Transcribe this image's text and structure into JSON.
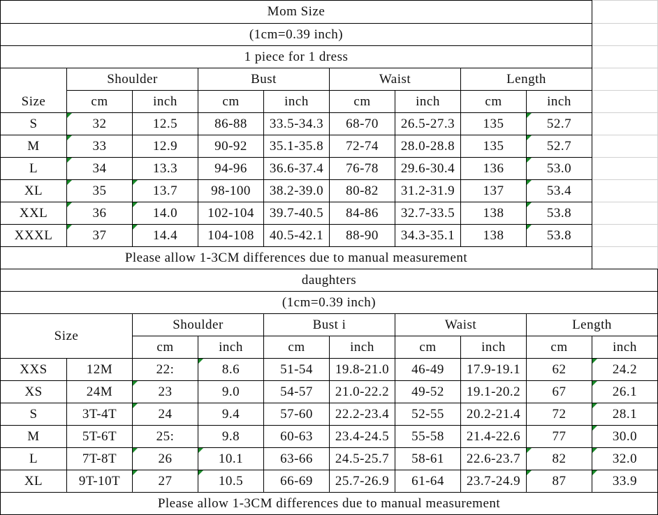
{
  "mom_table": {
    "title": "Mom Size",
    "conversion": "(1cm=0.39 inch)",
    "note": "1 piece for 1 dress",
    "size_header": "Size",
    "groups": [
      "Shoulder",
      "Bust",
      "Waist",
      "Length"
    ],
    "units": [
      "cm",
      "inch",
      "cm",
      "inch",
      "cm",
      "inch",
      "cm",
      "inch"
    ],
    "rows": [
      [
        "S",
        "32",
        "12.5",
        "86-88",
        "33.5-34.3",
        "68-70",
        "26.5-27.3",
        "135",
        "52.7"
      ],
      [
        "M",
        "33",
        "12.9",
        "90-92",
        "35.1-35.8",
        "72-74",
        "28.0-28.8",
        "135",
        "52.7"
      ],
      [
        "L",
        "34",
        "13.3",
        "94-96",
        "36.6-37.4",
        "76-78",
        "29.6-30.4",
        "136",
        "53.0"
      ],
      [
        "XL",
        "35",
        "13.7",
        "98-100",
        "38.2-39.0",
        "80-82",
        "31.2-31.9",
        "137",
        "53.4"
      ],
      [
        "XXL",
        "36",
        "14.0",
        "102-104",
        "39.7-40.5",
        "84-86",
        "32.7-33.5",
        "138",
        "53.8"
      ],
      [
        "XXXL",
        "37",
        "14.4",
        "104-108",
        "40.5-42.1",
        "88-90",
        "34.3-35.1",
        "138",
        "53.8"
      ]
    ],
    "footer": "Please allow 1-3CM differences due to manual measurement"
  },
  "daughters_table": {
    "title": "daughters",
    "conversion": "(1cm=0.39 inch)",
    "size_header": "Size",
    "groups": [
      "Shoulder",
      "Bust i",
      "Waist",
      "Length"
    ],
    "units": [
      "cm",
      "inch",
      "cm",
      "inch",
      "cm",
      "inch",
      "cm",
      "inch"
    ],
    "rows": [
      [
        "XXS",
        "12M",
        "22:",
        "8.6",
        "51-54",
        "19.8-21.0",
        "46-49",
        "17.9-19.1",
        "62",
        "24.2"
      ],
      [
        "XS",
        "24M",
        "23",
        "9.0",
        "54-57",
        "21.0-22.2",
        "49-52",
        "19.1-20.2",
        "67",
        "26.1"
      ],
      [
        "S",
        "3T-4T",
        "24",
        "9.4",
        "57-60",
        "22.2-23.4",
        "52-55",
        "20.2-21.4",
        "72",
        "28.1"
      ],
      [
        "M",
        "5T-6T",
        "25:",
        "9.8",
        "60-63",
        "23.4-24.5",
        "55-58",
        "21.4-22.6",
        "77",
        "30.0"
      ],
      [
        "L",
        "7T-8T",
        "26",
        "10.1",
        "63-66",
        "24.5-25.7",
        "58-61",
        "22.6-23.7",
        "82",
        "32.0"
      ],
      [
        "XL",
        "9T-10T",
        "27",
        "10.5",
        "66-69",
        "25.7-26.9",
        "61-64",
        "23.7-24.9",
        "87",
        "33.9"
      ]
    ],
    "footer": "Please allow 1-3CM differences due to manual measurement"
  }
}
